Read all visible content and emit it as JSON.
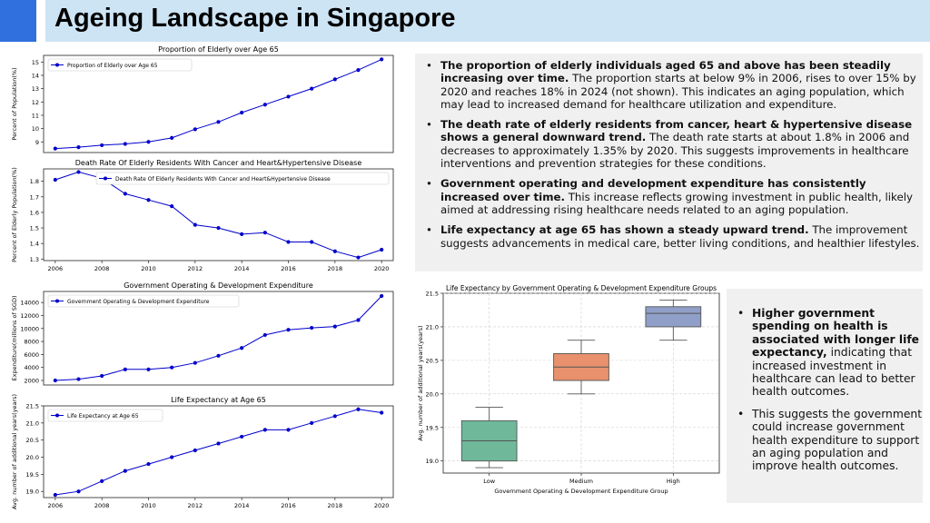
{
  "header": {
    "title": "Ageing Landscape in Singapore",
    "accent_color": "#2f6fde",
    "band_color": "#cde4f5"
  },
  "panel_top": {
    "bullets": [
      {
        "bold": "The proportion of elderly individuals aged 65 and above has been steadily increasing over time.",
        "text": " The proportion starts at below 9% in 2006, rises to over 15% by 2020 and reaches 18% in 2024 (not shown). This indicates an aging population, which may lead to increased demand for healthcare utilization and expenditure."
      },
      {
        "bold": "The death rate of elderly residents from cancer, heart & hypertensive disease shows a general downward trend.",
        "text": " The death rate starts at about 1.8% in 2006 and decreases to approximately 1.35% by 2020. This suggests improvements in healthcare interventions and prevention strategies for these conditions."
      },
      {
        "bold": "Government operating and development expenditure has consistently increased over time.",
        "text": " This increase reflects growing investment in public health, likely aimed at addressing rising healthcare needs related to an aging population."
      },
      {
        "bold": "Life expectancy at age 65 has shown a steady upward trend.",
        "text": " The improvement suggests advancements in medical care, better living conditions, and healthier lifestyles."
      }
    ]
  },
  "panel_bottom": {
    "bullets": [
      {
        "bold": "Higher government spending on health is associated with longer life expectancy,",
        "text": " indicating that increased investment in healthcare can lead to better health outcomes."
      },
      {
        "bold": "",
        "text": "This suggests the government could increase government health expenditure to support an aging population and improve health outcomes."
      }
    ]
  },
  "chart_data": [
    {
      "type": "line",
      "title": "Proportion of Elderly over Age 65",
      "ylabel": "Percent of Population(%)",
      "xlabel": "",
      "legend": "Proportion of Elderly over Age 65",
      "legend_position": "top-left",
      "color": "#0000cc",
      "x": [
        2006,
        2007,
        2008,
        2009,
        2010,
        2011,
        2012,
        2013,
        2014,
        2015,
        2016,
        2017,
        2018,
        2019,
        2020
      ],
      "y": [
        8.5,
        8.6,
        8.75,
        8.85,
        9.0,
        9.3,
        9.95,
        10.5,
        11.2,
        11.8,
        12.4,
        13.0,
        13.7,
        14.4,
        15.2
      ],
      "xlim": [
        2005.5,
        2020.5
      ],
      "ylim": [
        8.2,
        15.5
      ],
      "yticks": [
        9,
        10,
        11,
        12,
        13,
        14,
        15
      ],
      "xticks": [],
      "xticklabels": [],
      "yticklabels": [
        "9",
        "10",
        "11",
        "12",
        "13",
        "14",
        "15"
      ]
    },
    {
      "type": "line",
      "title": "Death Rate Of Elderly Residents With Cancer and Heart&Hypertensive Disease",
      "ylabel": "Percent of Elderly Population(%)",
      "xlabel": "",
      "legend": "Death Rate Of Elderly Residents With Cancer and Heart&Hypertensive Disease",
      "legend_position": "top-right",
      "color": "#0000cc",
      "x": [
        2006,
        2007,
        2008,
        2009,
        2010,
        2011,
        2012,
        2013,
        2014,
        2015,
        2016,
        2017,
        2018,
        2019,
        2020
      ],
      "y": [
        1.81,
        1.86,
        1.82,
        1.72,
        1.68,
        1.64,
        1.52,
        1.5,
        1.46,
        1.47,
        1.41,
        1.41,
        1.35,
        1.31,
        1.36
      ],
      "xlim": [
        2005.5,
        2020.5
      ],
      "ylim": [
        1.29,
        1.88
      ],
      "yticks": [
        1.3,
        1.4,
        1.5,
        1.6,
        1.7,
        1.8
      ],
      "xticks": [
        2006,
        2008,
        2010,
        2012,
        2014,
        2016,
        2018,
        2020
      ],
      "xticklabels": [
        "2006",
        "2008",
        "2010",
        "2012",
        "2014",
        "2016",
        "2018",
        "2020"
      ],
      "yticklabels": [
        "1.3",
        "1.4",
        "1.5",
        "1.6",
        "1.7",
        "1.8"
      ]
    },
    {
      "type": "line",
      "title": "Government Operating & Development Expenditure",
      "ylabel": "Expenditure(millions of SGD)",
      "xlabel": "",
      "legend": "Government Operating & Development Expenditure",
      "legend_position": "top-left",
      "color": "#0000cc",
      "x": [
        2006,
        2007,
        2008,
        2009,
        2010,
        2011,
        2012,
        2013,
        2014,
        2015,
        2016,
        2017,
        2018,
        2019,
        2020
      ],
      "y": [
        2000,
        2200,
        2700,
        3700,
        3700,
        4000,
        4700,
        5800,
        7000,
        9000,
        9800,
        10100,
        10300,
        11300,
        15000
      ],
      "xlim": [
        2005.5,
        2020.5
      ],
      "ylim": [
        1300,
        15700
      ],
      "yticks": [
        2000,
        4000,
        6000,
        8000,
        10000,
        12000,
        14000
      ],
      "xticks": [],
      "xticklabels": [],
      "yticklabels": [
        "2000",
        "4000",
        "6000",
        "8000",
        "10000",
        "12000",
        "14000"
      ]
    },
    {
      "type": "line",
      "title": "Life Expectancy at Age 65",
      "ylabel": "Avg. number of additional years(years)",
      "xlabel": "",
      "legend": "Life Expectancy at Age 65",
      "legend_position": "top-left",
      "color": "#0000cc",
      "x": [
        2006,
        2007,
        2008,
        2009,
        2010,
        2011,
        2012,
        2013,
        2014,
        2015,
        2016,
        2017,
        2018,
        2019,
        2020
      ],
      "y": [
        18.9,
        19.0,
        19.3,
        19.6,
        19.8,
        20.0,
        20.2,
        20.4,
        20.6,
        20.8,
        20.8,
        21.0,
        21.2,
        21.4,
        21.3
      ],
      "xlim": [
        2005.5,
        2020.5
      ],
      "ylim": [
        18.82,
        21.5
      ],
      "yticks": [
        19.0,
        19.5,
        20.0,
        20.5,
        21.0,
        21.5
      ],
      "xticks": [
        2006,
        2008,
        2010,
        2012,
        2014,
        2016,
        2018,
        2020
      ],
      "xticklabels": [
        "2006",
        "2008",
        "2010",
        "2012",
        "2014",
        "2016",
        "2018",
        "2020"
      ],
      "yticklabels": [
        "19.0",
        "19.5",
        "20.0",
        "20.5",
        "21.0",
        "21.5"
      ]
    },
    {
      "type": "box",
      "title": "Life Expectancy by Government Operating & Development Expenditure Groups",
      "xlabel": "Government Operating & Development Expenditure Group",
      "ylabel": "Avg. number of additional years(years)",
      "categories": [
        "Low",
        "Medium",
        "High"
      ],
      "colors": [
        "#6fb89a",
        "#e8916c",
        "#8f9fc7"
      ],
      "boxes": [
        {
          "min": 18.9,
          "q1": 19.0,
          "median": 19.3,
          "q3": 19.6,
          "max": 19.8
        },
        {
          "min": 20.0,
          "q1": 20.2,
          "median": 20.4,
          "q3": 20.6,
          "max": 20.8
        },
        {
          "min": 20.8,
          "q1": 21.0,
          "median": 21.2,
          "q3": 21.3,
          "max": 21.4
        }
      ],
      "ylim": [
        18.82,
        21.5
      ],
      "yticks": [
        19.0,
        19.5,
        20.0,
        20.5,
        21.0,
        21.5
      ],
      "yticklabels": [
        "19.0",
        "19.5",
        "20.0",
        "20.5",
        "21.0",
        "21.5"
      ],
      "grid": true
    }
  ]
}
